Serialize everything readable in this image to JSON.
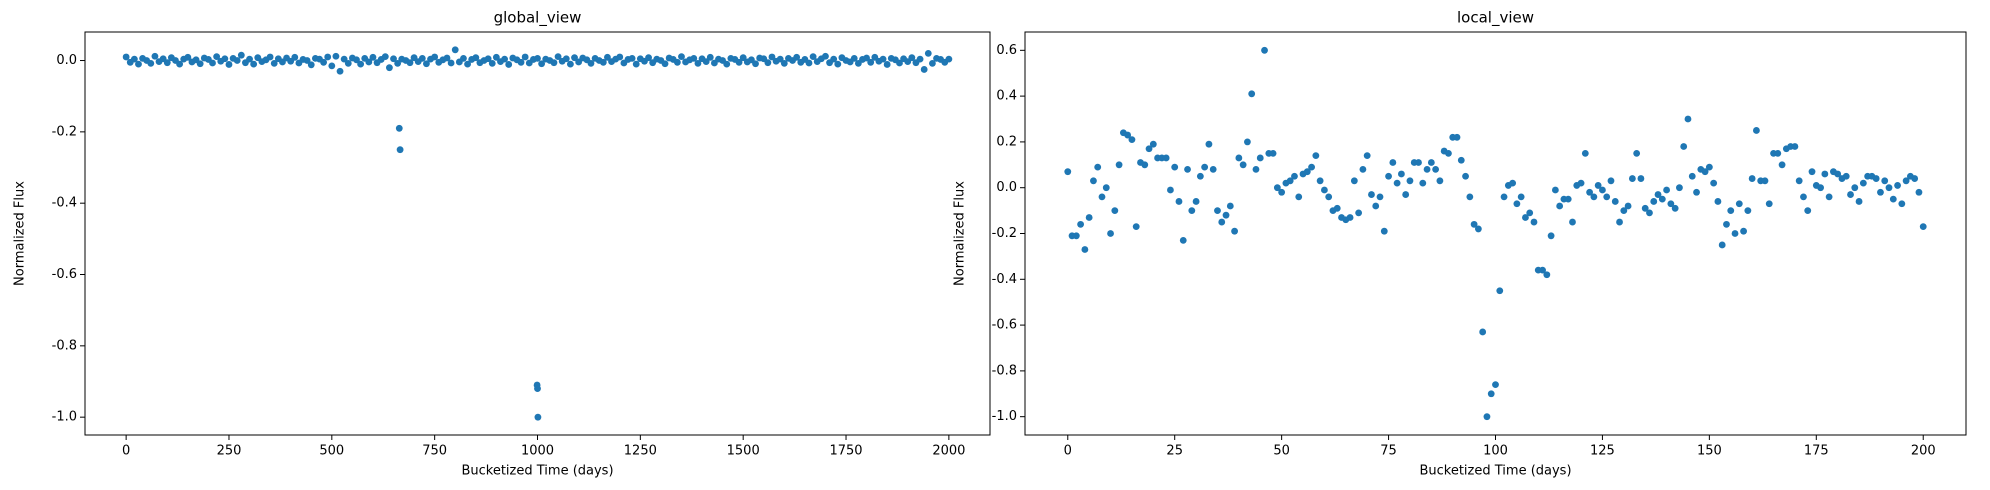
{
  "chart_data": [
    {
      "type": "scatter",
      "title": "global_view",
      "xlabel": "Bucketized Time (days)",
      "ylabel": "Normalized Flux",
      "color": "#1f77b4",
      "grid": false,
      "xlim": [
        -100,
        2100
      ],
      "ylim": [
        -1.05,
        0.08
      ],
      "xticks": [
        0,
        250,
        500,
        750,
        1000,
        1250,
        1500,
        1750,
        2000
      ],
      "yticks": [
        {
          "value": -1,
          "label": "-1.0"
        },
        {
          "value": -0.8,
          "label": "-0.8"
        },
        {
          "value": -0.6,
          "label": "-0.6"
        },
        {
          "value": -0.4,
          "label": "-0.4"
        },
        {
          "value": -0.2,
          "label": "-0.2"
        },
        {
          "value": 0,
          "label": "0.0"
        }
      ],
      "x": [
        0,
        10,
        20,
        30,
        40,
        50,
        60,
        70,
        80,
        90,
        100,
        110,
        120,
        130,
        140,
        150,
        160,
        170,
        180,
        190,
        200,
        210,
        220,
        230,
        240,
        250,
        260,
        270,
        280,
        290,
        300,
        310,
        320,
        330,
        340,
        350,
        360,
        370,
        380,
        390,
        400,
        410,
        420,
        430,
        440,
        450,
        460,
        470,
        480,
        490,
        500,
        510,
        520,
        530,
        540,
        550,
        560,
        570,
        580,
        590,
        600,
        610,
        620,
        630,
        640,
        650,
        660,
        670,
        680,
        690,
        700,
        710,
        720,
        730,
        740,
        750,
        760,
        770,
        780,
        790,
        800,
        810,
        820,
        830,
        840,
        850,
        860,
        870,
        880,
        890,
        900,
        910,
        920,
        930,
        940,
        950,
        960,
        970,
        980,
        990,
        1000,
        1010,
        1020,
        1030,
        1040,
        1050,
        1060,
        1070,
        1080,
        1090,
        1100,
        1110,
        1120,
        1130,
        1140,
        1150,
        1160,
        1170,
        1180,
        1190,
        1200,
        1210,
        1220,
        1230,
        1240,
        1250,
        1260,
        1270,
        1280,
        1290,
        1300,
        1310,
        1320,
        1330,
        1340,
        1350,
        1360,
        1370,
        1380,
        1390,
        1400,
        1410,
        1420,
        1430,
        1440,
        1450,
        1460,
        1470,
        1480,
        1490,
        1500,
        1510,
        1520,
        1530,
        1540,
        1550,
        1560,
        1570,
        1580,
        1590,
        1600,
        1610,
        1620,
        1630,
        1640,
        1650,
        1660,
        1670,
        1680,
        1690,
        1700,
        1710,
        1720,
        1730,
        1740,
        1750,
        1760,
        1770,
        1780,
        1790,
        1800,
        1810,
        1820,
        1830,
        1840,
        1850,
        1860,
        1870,
        1880,
        1890,
        1900,
        1910,
        1920,
        1930,
        1940,
        1950,
        1960,
        1970,
        1980,
        1990,
        2000,
        664,
        666,
        999,
        1000,
        1001
      ],
      "values": [
        0.01,
        -0.005,
        0.004,
        -0.01,
        0.006,
        0.0,
        -0.008,
        0.012,
        -0.003,
        0.005,
        -0.006,
        0.008,
        0.0,
        -0.01,
        0.004,
        0.009,
        -0.004,
        0.002,
        -0.009,
        0.007,
        0.003,
        -0.007,
        0.011,
        -0.002,
        0.005,
        -0.011,
        0.006,
        0.0,
        0.015,
        -0.006,
        0.004,
        -0.01,
        0.008,
        -0.003,
        0.002,
        0.01,
        -0.008,
        0.005,
        -0.004,
        0.007,
        -0.002,
        0.009,
        -0.007,
        0.003,
        0.0,
        -0.012,
        0.006,
        0.004,
        -0.005,
        0.01,
        -0.015,
        0.012,
        -0.03,
        0.004,
        -0.008,
        0.007,
        0.002,
        -0.01,
        0.006,
        -0.004,
        0.009,
        -0.006,
        0.003,
        0.011,
        -0.02,
        0.005,
        -0.008,
        0.004,
        0.0,
        -0.006,
        0.008,
        -0.003,
        0.006,
        -0.009,
        0.004,
        0.01,
        -0.005,
        0.002,
        0.007,
        -0.007,
        0.03,
        -0.004,
        0.006,
        -0.01,
        0.003,
        0.008,
        -0.006,
        0.0,
        0.005,
        -0.008,
        0.009,
        -0.003,
        0.004,
        -0.011,
        0.007,
        0.002,
        -0.005,
        0.01,
        -0.007,
        0.003,
        0.006,
        -0.009,
        0.004,
        0.0,
        -0.006,
        0.011,
        -0.002,
        0.005,
        -0.01,
        0.008,
        -0.004,
        0.007,
        0.002,
        -0.008,
        0.006,
        0.0,
        -0.005,
        0.009,
        -0.003,
        0.004,
        0.01,
        -0.007,
        0.003,
        0.006,
        -0.01,
        0.005,
        -0.002,
        0.008,
        -0.006,
        0.004,
        0.0,
        -0.009,
        0.007,
        0.003,
        -0.005,
        0.011,
        -0.004,
        0.002,
        0.006,
        -0.008,
        0.005,
        -0.003,
        0.009,
        -0.007,
        0.004,
        0.0,
        -0.01,
        0.006,
        0.003,
        -0.005,
        0.008,
        -0.004,
        0.002,
        -0.009,
        0.007,
        0.005,
        -0.006,
        0.01,
        -0.002,
        0.004,
        -0.008,
        0.006,
        0.0,
        0.009,
        -0.005,
        0.003,
        -0.007,
        0.011,
        -0.003,
        0.005,
        0.012,
        -0.006,
        0.004,
        -0.01,
        0.008,
        0.0,
        -0.004,
        0.006,
        -0.008,
        0.003,
        0.007,
        -0.005,
        0.009,
        -0.002,
        0.004,
        -0.011,
        0.006,
        0.002,
        -0.007,
        0.005,
        -0.003,
        0.008,
        -0.006,
        0.004,
        -0.025,
        0.02,
        -0.008,
        0.006,
        0.003,
        -0.005,
        0.004,
        -0.19,
        -0.25,
        -0.91,
        -0.92,
        -1.0
      ]
    },
    {
      "type": "scatter",
      "title": "local_view",
      "xlabel": "Bucketized Time (days)",
      "ylabel": "Normalized Flux",
      "color": "#1f77b4",
      "grid": false,
      "xlim": [
        -10,
        210
      ],
      "ylim": [
        -1.08,
        0.68
      ],
      "xticks": [
        0,
        25,
        50,
        75,
        100,
        125,
        150,
        175,
        200
      ],
      "yticks": [
        {
          "value": -1,
          "label": "-1.0"
        },
        {
          "value": -0.8,
          "label": "-0.8"
        },
        {
          "value": -0.6,
          "label": "-0.6"
        },
        {
          "value": -0.4,
          "label": "-0.4"
        },
        {
          "value": -0.2,
          "label": "-0.2"
        },
        {
          "value": 0,
          "label": "0.0"
        },
        {
          "value": 0.2,
          "label": "0.2"
        },
        {
          "value": 0.4,
          "label": "0.4"
        },
        {
          "value": 0.6,
          "label": "0.6"
        }
      ],
      "x": [
        0,
        1,
        2,
        3,
        4,
        5,
        6,
        7,
        8,
        9,
        10,
        11,
        12,
        13,
        14,
        15,
        16,
        17,
        18,
        19,
        20,
        21,
        22,
        23,
        24,
        25,
        26,
        27,
        28,
        29,
        30,
        31,
        32,
        33,
        34,
        35,
        36,
        37,
        38,
        39,
        40,
        41,
        42,
        43,
        44,
        45,
        46,
        47,
        48,
        49,
        50,
        51,
        52,
        53,
        54,
        55,
        56,
        57,
        58,
        59,
        60,
        61,
        62,
        63,
        64,
        65,
        66,
        67,
        68,
        69,
        70,
        71,
        72,
        73,
        74,
        75,
        76,
        77,
        78,
        79,
        80,
        81,
        82,
        83,
        84,
        85,
        86,
        87,
        88,
        89,
        90,
        91,
        92,
        93,
        94,
        95,
        96,
        97,
        98,
        99,
        100,
        101,
        102,
        103,
        104,
        105,
        106,
        107,
        108,
        109,
        110,
        111,
        112,
        113,
        114,
        115,
        116,
        117,
        118,
        119,
        120,
        121,
        122,
        123,
        124,
        125,
        126,
        127,
        128,
        129,
        130,
        131,
        132,
        133,
        134,
        135,
        136,
        137,
        138,
        139,
        140,
        141,
        142,
        143,
        144,
        145,
        146,
        147,
        148,
        149,
        150,
        151,
        152,
        153,
        154,
        155,
        156,
        157,
        158,
        159,
        160,
        161,
        162,
        163,
        164,
        165,
        166,
        167,
        168,
        169,
        170,
        171,
        172,
        173,
        174,
        175,
        176,
        177,
        178,
        179,
        180,
        181,
        182,
        183,
        184,
        185,
        186,
        187,
        188,
        189,
        190,
        191,
        192,
        193,
        194,
        195,
        196,
        197,
        198,
        199,
        200
      ],
      "values": [
        0.07,
        -0.21,
        -0.21,
        -0.16,
        -0.27,
        -0.13,
        0.03,
        0.09,
        -0.04,
        0.0,
        -0.2,
        -0.1,
        0.1,
        0.24,
        0.23,
        0.21,
        -0.17,
        0.11,
        0.1,
        0.17,
        0.19,
        0.13,
        0.13,
        0.13,
        -0.01,
        0.09,
        -0.06,
        -0.23,
        0.08,
        -0.1,
        -0.06,
        0.05,
        0.09,
        0.19,
        0.08,
        -0.1,
        -0.15,
        -0.12,
        -0.08,
        -0.19,
        0.13,
        0.1,
        0.2,
        0.41,
        0.08,
        0.13,
        0.6,
        0.15,
        0.15,
        0.0,
        -0.02,
        0.02,
        0.03,
        0.05,
        -0.04,
        0.06,
        0.07,
        0.09,
        0.14,
        0.03,
        -0.01,
        -0.04,
        -0.1,
        -0.09,
        -0.13,
        -0.14,
        -0.13,
        0.03,
        -0.11,
        0.08,
        0.14,
        -0.03,
        -0.08,
        -0.04,
        -0.19,
        0.05,
        0.11,
        0.02,
        0.06,
        -0.03,
        0.03,
        0.11,
        0.11,
        0.02,
        0.08,
        0.11,
        0.08,
        0.03,
        0.16,
        0.15,
        0.22,
        0.22,
        0.12,
        0.05,
        -0.04,
        -0.16,
        -0.18,
        -0.63,
        -1.0,
        -0.9,
        -0.86,
        -0.45,
        -0.04,
        0.01,
        0.02,
        -0.07,
        -0.04,
        -0.13,
        -0.11,
        -0.15,
        -0.36,
        -0.36,
        -0.38,
        -0.21,
        -0.01,
        -0.08,
        -0.05,
        -0.05,
        -0.15,
        0.01,
        0.02,
        0.15,
        -0.02,
        -0.04,
        0.01,
        -0.01,
        -0.04,
        0.03,
        -0.06,
        -0.15,
        -0.1,
        -0.08,
        0.04,
        0.15,
        0.04,
        -0.09,
        -0.11,
        -0.06,
        -0.03,
        -0.05,
        -0.01,
        -0.07,
        -0.09,
        0.0,
        0.18,
        0.3,
        0.05,
        -0.02,
        0.08,
        0.07,
        0.09,
        0.02,
        -0.06,
        -0.25,
        -0.16,
        -0.1,
        -0.2,
        -0.07,
        -0.19,
        -0.1,
        0.04,
        0.25,
        0.03,
        0.03,
        -0.07,
        0.15,
        0.15,
        0.1,
        0.17,
        0.18,
        0.18,
        0.03,
        -0.04,
        -0.1,
        0.07,
        0.01,
        0.0,
        0.06,
        -0.04,
        0.07,
        0.06,
        0.04,
        0.05,
        -0.03,
        0.0,
        -0.06,
        0.02,
        0.05,
        0.05,
        0.04,
        -0.02,
        0.03,
        0.0,
        -0.05,
        0.01,
        -0.07,
        0.03,
        0.05,
        0.04,
        -0.02,
        -0.17
      ]
    }
  ]
}
